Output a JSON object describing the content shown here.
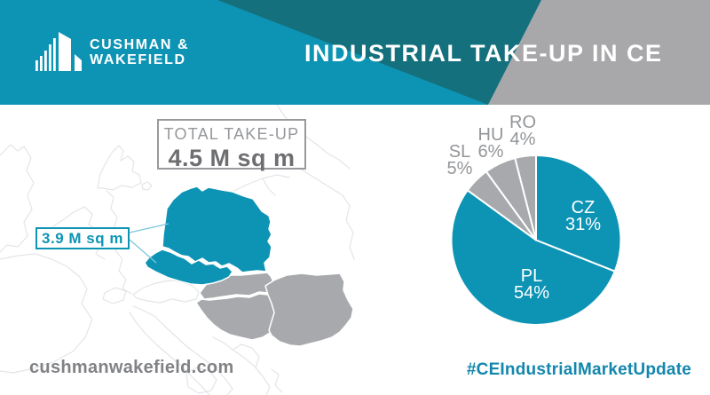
{
  "brand": {
    "name_line1": "CUSHMAN &",
    "name_line2": "WAKEFIELD"
  },
  "header": {
    "title": "INDUSTRIAL TAKE-UP IN CE"
  },
  "total": {
    "label": "TOTAL TAKE-UP",
    "value": "4.5 M sq m"
  },
  "map": {
    "callout_value": "3.9 M sq m",
    "countries_highlighted": [
      "Poland",
      "Czech Republic"
    ],
    "countries_muted": [
      "Slovakia",
      "Hungary",
      "Romania"
    ]
  },
  "footer": {
    "website": "cushmanwakefield.com",
    "hashtag": "#CEIndustrialMarketUpdate"
  },
  "colors": {
    "teal": "#0d94b5",
    "dark_teal": "#15707e",
    "header_gray": "#a8a8ab",
    "muted_gray": "#a7a9ac",
    "value_text": "#6d6e71",
    "gray_text": "#939598",
    "hashtag_blue": "#1386ac"
  },
  "chart_data": {
    "type": "pie",
    "unit": "%",
    "start_angle_deg": 0,
    "direction": "clockwise",
    "legend_position": "none",
    "slices": [
      {
        "label": "CZ",
        "value": 31,
        "pct_label": "31%",
        "color": "#0d94b5",
        "label_inside": true
      },
      {
        "label": "PL",
        "value": 54,
        "pct_label": "54%",
        "color": "#0d94b5",
        "label_inside": true
      },
      {
        "label": "SL",
        "value": 5,
        "pct_label": "5%",
        "color": "#a7a9ac",
        "label_inside": false
      },
      {
        "label": "HU",
        "value": 6,
        "pct_label": "6%",
        "color": "#a7a9ac",
        "label_inside": false
      },
      {
        "label": "RO",
        "value": 4,
        "pct_label": "4%",
        "color": "#a7a9ac",
        "label_inside": false
      }
    ]
  }
}
